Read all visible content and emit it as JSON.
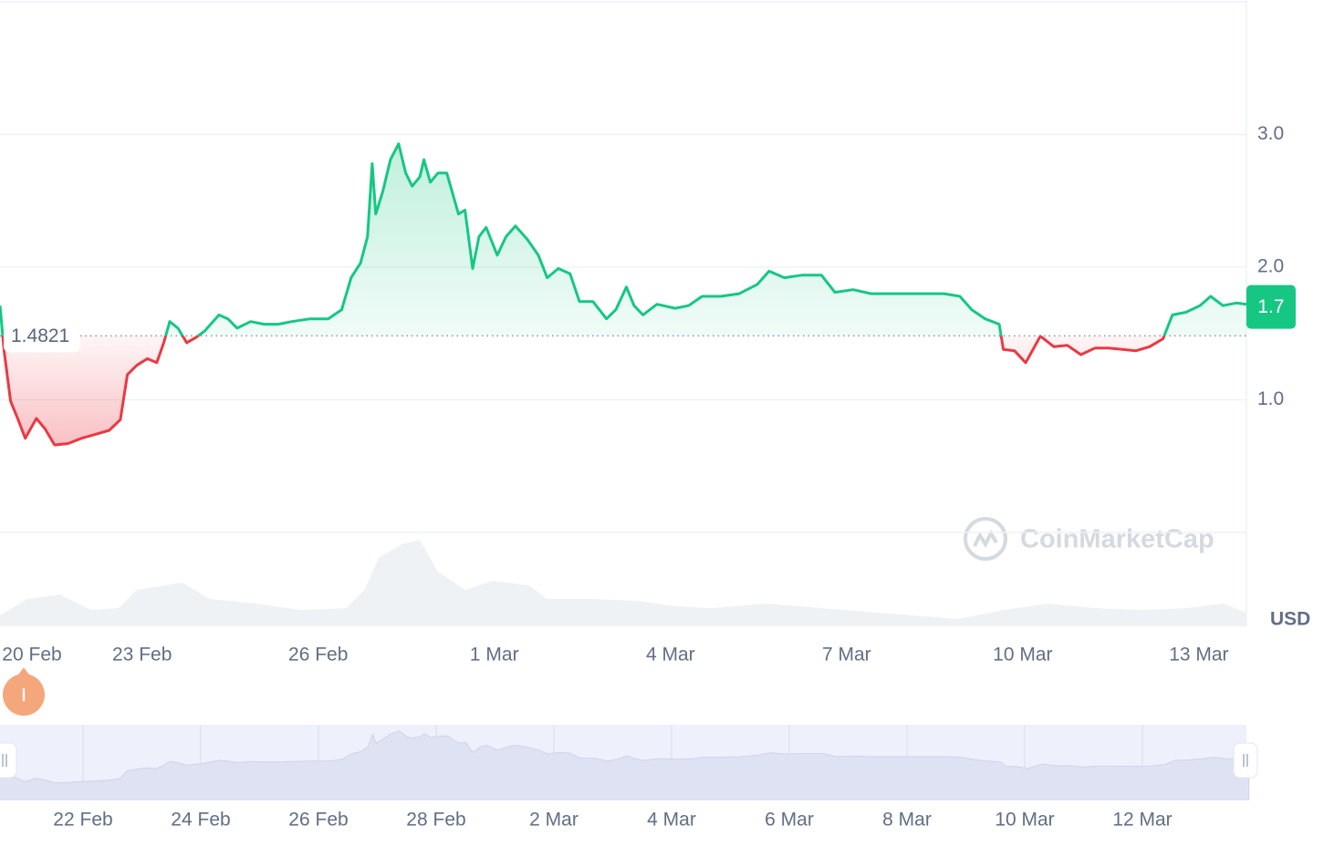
{
  "chart_data": {
    "type": "line",
    "x": [
      0.58,
      0.65,
      0.76,
      0.89,
      1.01,
      1.2,
      1.35,
      1.51,
      1.74,
      1.97,
      2.21,
      2.44,
      2.63,
      2.75,
      2.91,
      3.09,
      3.25,
      3.37,
      3.47,
      3.61,
      3.76,
      3.92,
      4.07,
      4.31,
      4.46,
      4.62,
      4.85,
      5.08,
      5.32,
      5.55,
      5.86,
      6.17,
      6.4,
      6.56,
      6.72,
      6.84,
      6.92,
      6.98,
      7.1,
      7.23,
      7.37,
      7.49,
      7.6,
      7.73,
      7.8,
      7.91,
      8.04,
      8.19,
      8.3,
      8.39,
      8.5,
      8.63,
      8.74,
      8.86,
      9.05,
      9.2,
      9.36,
      9.56,
      9.75,
      9.9,
      10.09,
      10.29,
      10.45,
      10.68,
      10.91,
      11.07,
      11.25,
      11.38,
      11.53,
      11.77,
      12.08,
      12.31,
      12.54,
      12.86,
      13.17,
      13.48,
      13.68,
      13.94,
      14.25,
      14.57,
      14.8,
      15.11,
      15.42,
      15.73,
      16.04,
      16.35,
      16.66,
      16.93,
      17.13,
      17.36,
      17.6,
      17.67,
      17.86,
      18.05,
      18.3,
      18.53,
      18.76,
      18.99,
      19.23,
      19.46,
      19.7,
      19.93,
      20.16,
      20.39,
      20.55,
      20.78,
      21.02,
      21.2,
      21.41,
      21.64,
      21.81
    ],
    "values": [
      1.71,
      1.37,
      0.99,
      0.85,
      0.71,
      0.86,
      0.78,
      0.66,
      0.67,
      0.71,
      0.74,
      0.77,
      0.85,
      1.19,
      1.26,
      1.31,
      1.28,
      1.43,
      1.59,
      1.54,
      1.43,
      1.47,
      1.52,
      1.64,
      1.61,
      1.54,
      1.59,
      1.57,
      1.57,
      1.59,
      1.61,
      1.61,
      1.68,
      1.92,
      2.03,
      2.23,
      2.78,
      2.4,
      2.57,
      2.81,
      2.93,
      2.71,
      2.61,
      2.68,
      2.81,
      2.64,
      2.71,
      2.71,
      2.54,
      2.4,
      2.43,
      1.99,
      2.23,
      2.3,
      2.09,
      2.23,
      2.31,
      2.21,
      2.09,
      1.92,
      1.99,
      1.95,
      1.74,
      1.74,
      1.61,
      1.68,
      1.85,
      1.71,
      1.64,
      1.72,
      1.69,
      1.71,
      1.78,
      1.78,
      1.8,
      1.87,
      1.97,
      1.92,
      1.94,
      1.94,
      1.81,
      1.83,
      1.8,
      1.8,
      1.8,
      1.8,
      1.8,
      1.78,
      1.68,
      1.61,
      1.57,
      1.38,
      1.37,
      1.28,
      1.48,
      1.4,
      1.41,
      1.34,
      1.39,
      1.39,
      1.38,
      1.37,
      1.4,
      1.46,
      1.64,
      1.66,
      1.71,
      1.78,
      1.71,
      1.73,
      1.72
    ],
    "up_color": "#16c784",
    "down_color": "#ea3943",
    "reference": 1.4821,
    "current": 1.7,
    "xlim": [
      0.58,
      21.81
    ],
    "xticks": [
      {
        "value": 0,
        "label": "20 Feb"
      },
      {
        "value": 3,
        "label": "23 Feb"
      },
      {
        "value": 6,
        "label": "26 Feb"
      },
      {
        "value": 9,
        "label": "1 Mar"
      },
      {
        "value": 12,
        "label": "4 Mar"
      },
      {
        "value": 15,
        "label": "7 Mar"
      },
      {
        "value": 18,
        "label": "10 Mar"
      },
      {
        "value": 21,
        "label": "13 Mar"
      }
    ],
    "ylim": [
      0,
      4
    ],
    "yticks": [
      {
        "value": 1,
        "label": "1.0"
      },
      {
        "value": 2,
        "label": "2.0"
      },
      {
        "value": 3,
        "label": "3.0"
      }
    ],
    "y_axis_label": "USD",
    "watermark": "CoinMarketCap",
    "grid": true,
    "volume": {
      "x": [
        0.58,
        1.04,
        1.59,
        2.13,
        2.6,
        2.91,
        3.68,
        4.15,
        4.93,
        5.7,
        6.48,
        6.79,
        7.03,
        7.42,
        7.73,
        8.04,
        8.5,
        8.97,
        9.59,
        9.9,
        10.68,
        11.46,
        12.08,
        12.7,
        13.63,
        14.57,
        16.12,
        16.9,
        17.67,
        18.45,
        19.23,
        20.01,
        20.78,
        21.41,
        21.81
      ],
      "values": [
        12,
        30,
        35,
        18,
        20,
        40,
        48,
        30,
        25,
        18,
        20,
        40,
        75,
        90,
        95,
        60,
        40,
        50,
        45,
        30,
        30,
        28,
        22,
        20,
        25,
        20,
        12,
        8,
        18,
        25,
        20,
        18,
        20,
        25,
        15
      ],
      "ylim": [
        0,
        100
      ],
      "color": "#eff2f5"
    },
    "navigator": {
      "xticks": [
        {
          "value": 2,
          "label": "22 Feb"
        },
        {
          "value": 4,
          "label": "24 Feb"
        },
        {
          "value": 6,
          "label": "26 Feb"
        },
        {
          "value": 8,
          "label": "28 Feb"
        },
        {
          "value": 10,
          "label": "2 Mar"
        },
        {
          "value": 12,
          "label": "4 Mar"
        },
        {
          "value": 14,
          "label": "6 Mar"
        },
        {
          "value": 16,
          "label": "8 Mar"
        },
        {
          "value": 18,
          "label": "10 Mar"
        },
        {
          "value": 20,
          "label": "12 Mar"
        }
      ]
    }
  }
}
